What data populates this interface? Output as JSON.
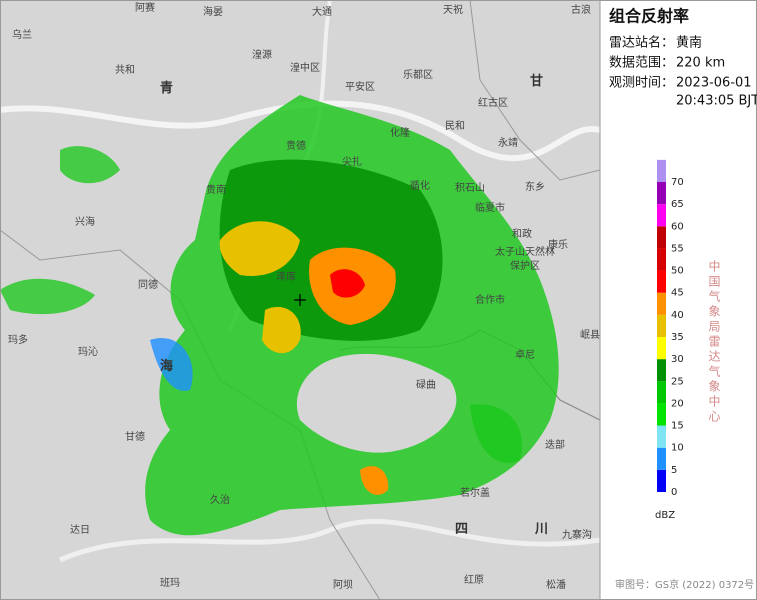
{
  "panel": {
    "title": "组合反射率",
    "fields": [
      {
        "label": "雷达站名：",
        "value": "黄南"
      },
      {
        "label": "数据范围：",
        "value": "220 km"
      },
      {
        "label": "观测时间：",
        "value": "2023-06-01",
        "value2": "20:43:05 BJT"
      }
    ],
    "unit": "dBZ",
    "agency": "中国气象局雷达气象中心",
    "footer": "审图号：GS京 (2022) 0372号"
  },
  "legend": {
    "ticks": [
      0,
      5,
      10,
      15,
      20,
      25,
      30,
      35,
      40,
      45,
      50,
      55,
      60,
      65,
      70
    ],
    "colors": [
      "#0000f6",
      "#1e90ff",
      "#7fe4f4",
      "#00e400",
      "#00c800",
      "#009000",
      "#ffff00",
      "#e7c000",
      "#ff9000",
      "#ff0000",
      "#d60000",
      "#c00000",
      "#ff00f0",
      "#9600b4",
      "#ad90f0"
    ]
  },
  "places": [
    "阿赛",
    "海晏",
    "大通",
    "天祝",
    "古浪",
    "乌兰",
    "湟源",
    "湟中区",
    "共和",
    "青",
    "平安区",
    "乐都区",
    "甘",
    "红古区",
    "民和",
    "永靖",
    "化隆",
    "贵德",
    "尖扎",
    "循化",
    "积石山",
    "东乡",
    "临夏市",
    "兴海",
    "贵南",
    "和政",
    "康乐",
    "太子山天然林",
    "保护区",
    "合作市",
    "同德",
    "泽库",
    "玛多",
    "玛沁",
    "海",
    "碌曲",
    "卓尼",
    "岷县",
    "甘德",
    "迭部",
    "若尔盖",
    "久治",
    "达日",
    "四",
    "川",
    "九寨沟",
    "班玛",
    "阿坝",
    "红原",
    "松潘"
  ]
}
